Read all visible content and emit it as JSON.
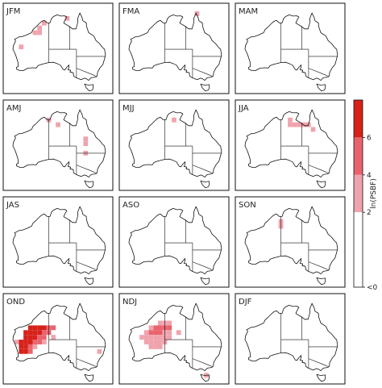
{
  "chart_data": {
    "type": "heatmap",
    "title": "",
    "colorbar": {
      "label": "ln(PSBF)",
      "tick_labels": [
        "<0",
        "2",
        "4",
        "6"
      ],
      "bins": [
        {
          "range": "<0",
          "color": "#ffffff"
        },
        {
          "range": "0-2",
          "color": "#ffffff"
        },
        {
          "range": "2-4",
          "color": "#f0a3ad"
        },
        {
          "range": "4-6",
          "color": "#e9636d"
        },
        {
          "range": ">6",
          "color": "#d6221a"
        }
      ]
    },
    "grid": {
      "lon_min": 112,
      "lon_max": 154,
      "lat_min": -44,
      "lat_max": -10,
      "cell_deg": 2
    },
    "panels": [
      {
        "label": "JFM",
        "cells": [
          {
            "lon": 122,
            "lat": -18,
            "v": 3
          },
          {
            "lon": 124,
            "lat": -18,
            "v": 3
          },
          {
            "lon": 124,
            "lat": -16,
            "v": 3
          },
          {
            "lon": 126,
            "lat": -14,
            "v": 3
          },
          {
            "lon": 136,
            "lat": -12,
            "v": 3
          },
          {
            "lon": 116,
            "lat": -24,
            "v": 3
          }
        ]
      },
      {
        "label": "FMA",
        "cells": [
          {
            "lon": 142,
            "lat": -10,
            "v": 3
          }
        ]
      },
      {
        "label": "MAM",
        "cells": []
      },
      {
        "label": "AMJ",
        "cells": [
          {
            "lon": 128,
            "lat": -14,
            "v": 3
          },
          {
            "lon": 132,
            "lat": -16,
            "v": 3
          },
          {
            "lon": 144,
            "lat": -22,
            "v": 3
          },
          {
            "lon": 144,
            "lat": -24,
            "v": 3
          },
          {
            "lon": 144,
            "lat": -28,
            "v": 3
          }
        ]
      },
      {
        "label": "MJJ",
        "cells": [
          {
            "lon": 132,
            "lat": -14,
            "v": 3
          }
        ]
      },
      {
        "label": "JJA",
        "cells": [
          {
            "lon": 132,
            "lat": -14,
            "v": 3
          },
          {
            "lon": 132,
            "lat": -16,
            "v": 3
          },
          {
            "lon": 134,
            "lat": -16,
            "v": 3
          },
          {
            "lon": 136,
            "lat": -16,
            "v": 3
          },
          {
            "lon": 138,
            "lat": -16,
            "v": 3
          },
          {
            "lon": 140,
            "lat": -16,
            "v": 3
          },
          {
            "lon": 142,
            "lat": -18,
            "v": 3
          }
        ]
      },
      {
        "label": "JAS",
        "cells": []
      },
      {
        "label": "ASO",
        "cells": []
      },
      {
        "label": "SON",
        "cells": [
          {
            "lon": 128,
            "lat": -16,
            "v": 3
          },
          {
            "lon": 128,
            "lat": -18,
            "v": 3
          }
        ]
      },
      {
        "label": "OND",
        "cells": [
          {
            "lon": 120,
            "lat": -20,
            "v": 7
          },
          {
            "lon": 122,
            "lat": -20,
            "v": 7
          },
          {
            "lon": 124,
            "lat": -20,
            "v": 7
          },
          {
            "lon": 126,
            "lat": -20,
            "v": 7
          },
          {
            "lon": 128,
            "lat": -20,
            "v": 5
          },
          {
            "lon": 130,
            "lat": -20,
            "v": 5
          },
          {
            "lon": 118,
            "lat": -22,
            "v": 7
          },
          {
            "lon": 120,
            "lat": -22,
            "v": 7
          },
          {
            "lon": 122,
            "lat": -22,
            "v": 7
          },
          {
            "lon": 124,
            "lat": -22,
            "v": 7
          },
          {
            "lon": 126,
            "lat": -22,
            "v": 5
          },
          {
            "lon": 128,
            "lat": -22,
            "v": 5
          },
          {
            "lon": 118,
            "lat": -24,
            "v": 7
          },
          {
            "lon": 120,
            "lat": -24,
            "v": 7
          },
          {
            "lon": 122,
            "lat": -24,
            "v": 7
          },
          {
            "lon": 124,
            "lat": -24,
            "v": 5
          },
          {
            "lon": 126,
            "lat": -24,
            "v": 5
          },
          {
            "lon": 130,
            "lat": -24,
            "v": 3
          },
          {
            "lon": 114,
            "lat": -26,
            "v": 3
          },
          {
            "lon": 116,
            "lat": -26,
            "v": 7
          },
          {
            "lon": 118,
            "lat": -26,
            "v": 7
          },
          {
            "lon": 120,
            "lat": -26,
            "v": 7
          },
          {
            "lon": 122,
            "lat": -26,
            "v": 5
          },
          {
            "lon": 124,
            "lat": -26,
            "v": 5
          },
          {
            "lon": 126,
            "lat": -26,
            "v": 3
          },
          {
            "lon": 116,
            "lat": -28,
            "v": 7
          },
          {
            "lon": 118,
            "lat": -28,
            "v": 7
          },
          {
            "lon": 120,
            "lat": -28,
            "v": 5
          },
          {
            "lon": 122,
            "lat": -28,
            "v": 3
          },
          {
            "lon": 116,
            "lat": -30,
            "v": 7
          },
          {
            "lon": 118,
            "lat": -30,
            "v": 7
          },
          {
            "lon": 120,
            "lat": -30,
            "v": 5
          },
          {
            "lon": 150,
            "lat": -30,
            "v": 3
          }
        ]
      },
      {
        "label": "NDJ",
        "cells": [
          {
            "lon": 126,
            "lat": -18,
            "v": 3
          },
          {
            "lon": 128,
            "lat": -18,
            "v": 3
          },
          {
            "lon": 130,
            "lat": -18,
            "v": 3
          },
          {
            "lon": 122,
            "lat": -20,
            "v": 3
          },
          {
            "lon": 124,
            "lat": -20,
            "v": 5
          },
          {
            "lon": 126,
            "lat": -20,
            "v": 5
          },
          {
            "lon": 128,
            "lat": -20,
            "v": 5
          },
          {
            "lon": 130,
            "lat": -20,
            "v": 5
          },
          {
            "lon": 120,
            "lat": -22,
            "v": 3
          },
          {
            "lon": 122,
            "lat": -22,
            "v": 5
          },
          {
            "lon": 124,
            "lat": -22,
            "v": 5
          },
          {
            "lon": 126,
            "lat": -22,
            "v": 5
          },
          {
            "lon": 128,
            "lat": -22,
            "v": 3
          },
          {
            "lon": 130,
            "lat": -22,
            "v": 3
          },
          {
            "lon": 134,
            "lat": -22,
            "v": 3
          },
          {
            "lon": 118,
            "lat": -24,
            "v": 3
          },
          {
            "lon": 120,
            "lat": -24,
            "v": 3
          },
          {
            "lon": 122,
            "lat": -24,
            "v": 3
          },
          {
            "lon": 124,
            "lat": -24,
            "v": 3
          },
          {
            "lon": 126,
            "lat": -24,
            "v": 3
          },
          {
            "lon": 128,
            "lat": -24,
            "v": 3
          },
          {
            "lon": 130,
            "lat": -24,
            "v": 3
          },
          {
            "lon": 120,
            "lat": -26,
            "v": 3
          },
          {
            "lon": 122,
            "lat": -26,
            "v": 3
          },
          {
            "lon": 124,
            "lat": -26,
            "v": 3
          },
          {
            "lon": 126,
            "lat": -26,
            "v": 3
          },
          {
            "lon": 128,
            "lat": -26,
            "v": 3
          },
          {
            "lon": 122,
            "lat": -28,
            "v": 3
          },
          {
            "lon": 124,
            "lat": -28,
            "v": 3
          },
          {
            "lon": 126,
            "lat": -28,
            "v": 3
          },
          {
            "lon": 146,
            "lat": -40,
            "v": 3
          }
        ]
      },
      {
        "label": "DJF",
        "cells": []
      }
    ]
  }
}
